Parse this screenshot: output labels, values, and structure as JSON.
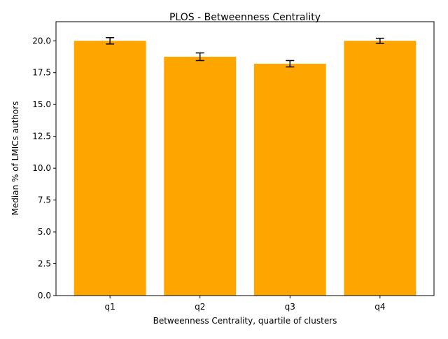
{
  "chart_data": {
    "type": "bar",
    "title": "PLOS - Betweenness Centrality",
    "xlabel": "Betweenness Centrality, quartile of clusters",
    "ylabel": "Median % of LMICs authors",
    "categories": [
      "q1",
      "q2",
      "q3",
      "q4"
    ],
    "values": [
      20.0,
      18.75,
      18.2,
      20.0
    ],
    "error_low": [
      19.75,
      18.45,
      17.95,
      19.8
    ],
    "error_high": [
      20.25,
      19.05,
      18.45,
      20.2
    ],
    "ylim": [
      0,
      21.5
    ],
    "yticks": [
      0.0,
      2.5,
      5.0,
      7.5,
      10.0,
      12.5,
      15.0,
      17.5,
      20.0
    ],
    "ytick_labels": [
      "0.0",
      "2.5",
      "5.0",
      "7.5",
      "10.0",
      "12.5",
      "15.0",
      "17.5",
      "20.0"
    ],
    "grid": false,
    "bar_color": "#ffa500",
    "error_color": "#000000"
  }
}
